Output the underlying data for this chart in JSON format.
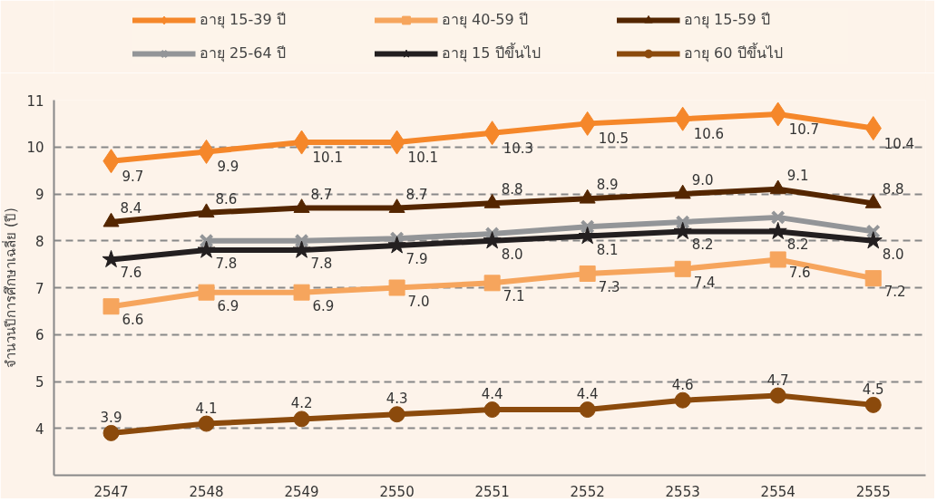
{
  "chart_data": {
    "type": "line",
    "ylabel": "จำนวนปีการศึกษาเฉลี่ย (ปี)",
    "categories": [
      "2547",
      "2548",
      "2549",
      "2550",
      "2551",
      "2552",
      "2553",
      "2554",
      "2555"
    ],
    "ylim": [
      3,
      11
    ],
    "yticks": [
      {
        "value": 3,
        "label": null
      },
      4,
      5,
      6,
      7,
      8,
      9,
      10,
      11
    ],
    "grid": "y",
    "legend": "top",
    "line_style": "solid",
    "series": [
      {
        "name": "อายุ 15-39 ปี",
        "color": "#f5872a",
        "marker": "diamond",
        "values": [
          9.7,
          9.9,
          10.1,
          10.1,
          10.3,
          10.5,
          10.6,
          10.7,
          10.4
        ],
        "value_labels": [
          "9.7",
          "9.9",
          "10.1",
          "10.1",
          "10.3",
          "10.5",
          "10.6",
          "10.7",
          "10.4"
        ]
      },
      {
        "name": "อายุ 40-59 ปี",
        "color": "#f6a55d",
        "marker": "square",
        "values": [
          6.6,
          6.9,
          6.9,
          7.0,
          7.1,
          7.3,
          7.4,
          7.6,
          7.2
        ],
        "value_labels": [
          "6.6",
          "6.9",
          "6.9",
          "7.0",
          "7.1",
          "7.3",
          "7.4",
          "7.6",
          "7.2"
        ]
      },
      {
        "name": "อายุ 15-59 ปี",
        "color": "#542600",
        "marker": "triangle",
        "values": [
          8.4,
          8.6,
          8.7,
          8.7,
          8.8,
          8.9,
          9.0,
          9.1,
          8.8
        ],
        "value_labels": [
          "8.4",
          "8.6",
          "8.7",
          "8.7",
          "8.8",
          "8.9",
          "9.0",
          "9.1",
          "8.8"
        ]
      },
      {
        "name": "อายุ 25-64 ปี",
        "color": "#939598",
        "marker": "cross",
        "values": [
          null,
          8.0,
          8.0,
          8.05,
          8.15,
          8.3,
          8.4,
          8.5,
          8.2
        ]
      },
      {
        "name": "อายุ 15 ปีขึ้นไป",
        "color": "#231f20",
        "marker": "star",
        "values": [
          7.6,
          7.8,
          7.8,
          7.9,
          8.0,
          8.1,
          8.2,
          8.2,
          8.0
        ],
        "value_labels": [
          "7.6",
          "7.8",
          "7.8",
          "7.9",
          "8.0",
          "8.1",
          "8.2",
          "8.2",
          "8.0"
        ]
      },
      {
        "name": "อายุ 60 ปีขึ้นไป",
        "color": "#8b4a0c",
        "marker": "circle",
        "values": [
          3.9,
          4.1,
          4.2,
          4.3,
          4.4,
          4.4,
          4.6,
          4.7,
          4.5
        ],
        "value_labels": [
          "3.9",
          "4.1",
          "4.2",
          "4.3",
          "4.4",
          "4.4",
          "4.6",
          "4.7",
          "4.5"
        ]
      }
    ]
  }
}
